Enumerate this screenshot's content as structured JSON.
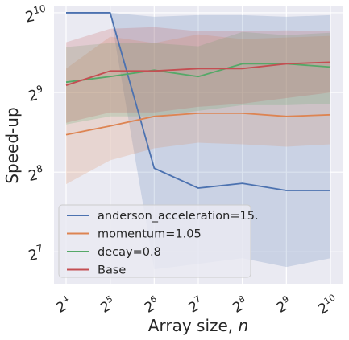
{
  "chart_data": {
    "type": "line",
    "xlabel": "Array size, ",
    "xlabel_var": "n",
    "ylabel": "Speed-up",
    "x_log2": [
      4,
      5,
      6,
      7,
      8,
      9,
      10
    ],
    "x_tick_labels": [
      {
        "base": "2",
        "exp": "4"
      },
      {
        "base": "2",
        "exp": "5"
      },
      {
        "base": "2",
        "exp": "6"
      },
      {
        "base": "2",
        "exp": "7"
      },
      {
        "base": "2",
        "exp": "8"
      },
      {
        "base": "2",
        "exp": "9"
      },
      {
        "base": "2",
        "exp": "10"
      }
    ],
    "y_tick_labels": [
      {
        "base": "2",
        "exp": "7",
        "value_log2": 7
      },
      {
        "base": "2",
        "exp": "8",
        "value_log2": 8
      },
      {
        "base": "2",
        "exp": "9",
        "value_log2": 9
      },
      {
        "base": "2",
        "exp": "10",
        "value_log2": 10
      }
    ],
    "ylim_log2": [
      6.6,
      10.08
    ],
    "grid": true,
    "legend_position": "bottom-left",
    "series": [
      {
        "name": "anderson_acceleration=15.",
        "color": "#4c72b0",
        "y_log2": [
          10.0,
          10.0,
          8.05,
          7.8,
          7.86,
          7.77,
          7.77
        ],
        "band_upper_log2": [
          10.0,
          10.0,
          9.95,
          9.97,
          9.97,
          9.95,
          9.97
        ],
        "band_lower_log2": [
          10.0,
          10.0,
          6.78,
          6.85,
          6.92,
          6.81,
          6.92
        ]
      },
      {
        "name": "momentum=1.05",
        "color": "#dd8452",
        "y_log2": [
          8.47,
          8.58,
          8.7,
          8.74,
          8.74,
          8.7,
          8.72
        ],
        "band_upper_log2": [
          9.3,
          9.7,
          9.62,
          9.73,
          9.67,
          9.69,
          9.71
        ],
        "band_lower_log2": [
          7.85,
          8.15,
          8.3,
          8.37,
          8.35,
          8.32,
          8.35
        ]
      },
      {
        "name": "decay=0.8",
        "color": "#55a868",
        "y_log2": [
          9.13,
          9.2,
          9.28,
          9.2,
          9.36,
          9.36,
          9.32
        ],
        "band_upper_log2": [
          9.57,
          9.62,
          9.62,
          9.58,
          9.76,
          9.72,
          9.75
        ],
        "band_lower_log2": [
          8.6,
          8.7,
          8.7,
          8.77,
          8.84,
          8.84,
          8.86
        ]
      },
      {
        "name": "Base",
        "color": "#c44e52",
        "y_log2": [
          9.09,
          9.27,
          9.27,
          9.3,
          9.3,
          9.36,
          9.38
        ],
        "band_upper_log2": [
          9.63,
          9.8,
          9.82,
          9.77,
          9.77,
          9.78,
          9.77
        ],
        "band_lower_log2": [
          8.62,
          8.75,
          8.75,
          8.82,
          8.86,
          8.93,
          9.0
        ]
      }
    ]
  }
}
